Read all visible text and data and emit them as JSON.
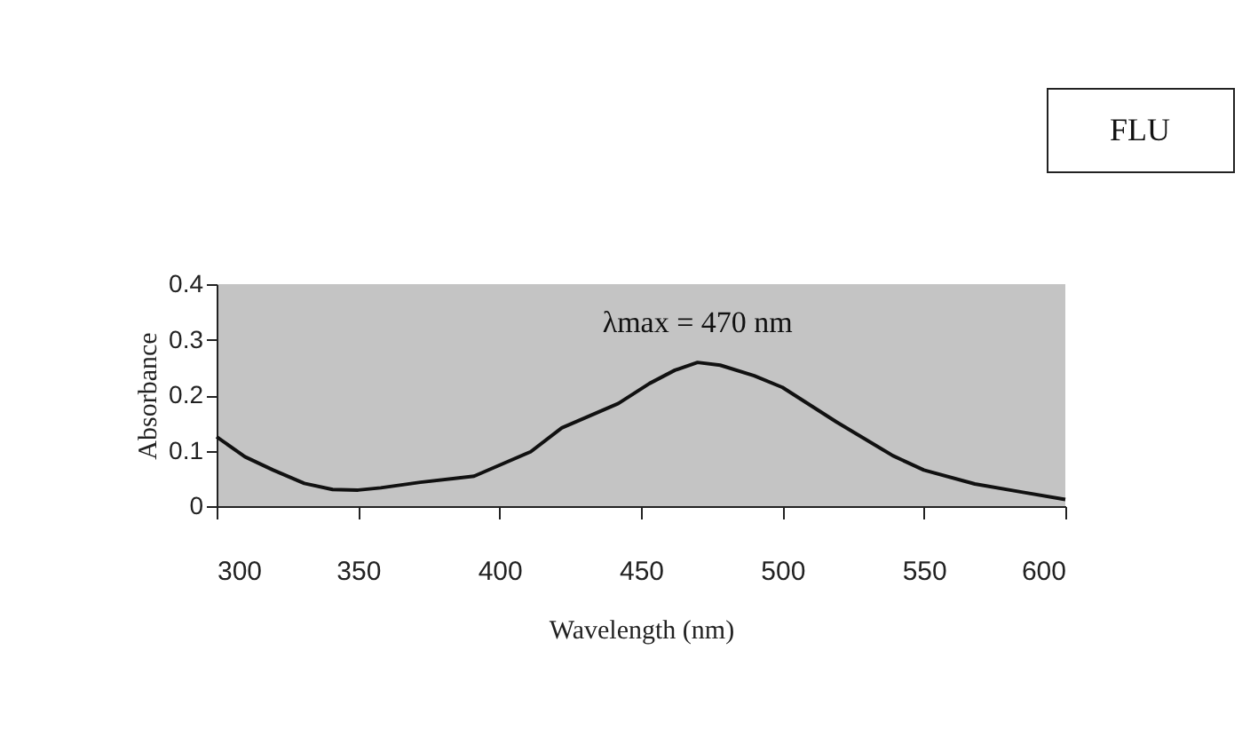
{
  "chart_data": {
    "type": "line",
    "xlabel": "Wavelength  (nm)",
    "ylabel": "Absorbance",
    "x": [
      300,
      310,
      320,
      331,
      341,
      350,
      358,
      372,
      391,
      411,
      422,
      442,
      453,
      462,
      470,
      478,
      490,
      500,
      519,
      539,
      550,
      568,
      585,
      600
    ],
    "series": [
      {
        "color": "#111111",
        "values": [
          0.125,
          0.089,
          0.065,
          0.041,
          0.03,
          0.029,
          0.033,
          0.043,
          0.054,
          0.098,
          0.141,
          0.185,
          0.221,
          0.245,
          0.259,
          0.254,
          0.235,
          0.214,
          0.152,
          0.091,
          0.065,
          0.04,
          0.025,
          0.012
        ]
      }
    ],
    "xlim": [
      300,
      600
    ],
    "xticks": [
      300,
      350,
      400,
      450,
      500,
      550,
      600
    ],
    "ylim": [
      0,
      0.4
    ],
    "yticks": [
      0,
      0.1,
      0.2,
      0.3,
      0.4
    ],
    "grid": false,
    "legend": false,
    "marker": "none",
    "line_style": "solid",
    "annotations": [
      {
        "text": "λmax = 470 nm",
        "x": 470,
        "y": 0.259
      },
      "FLU"
    ]
  }
}
